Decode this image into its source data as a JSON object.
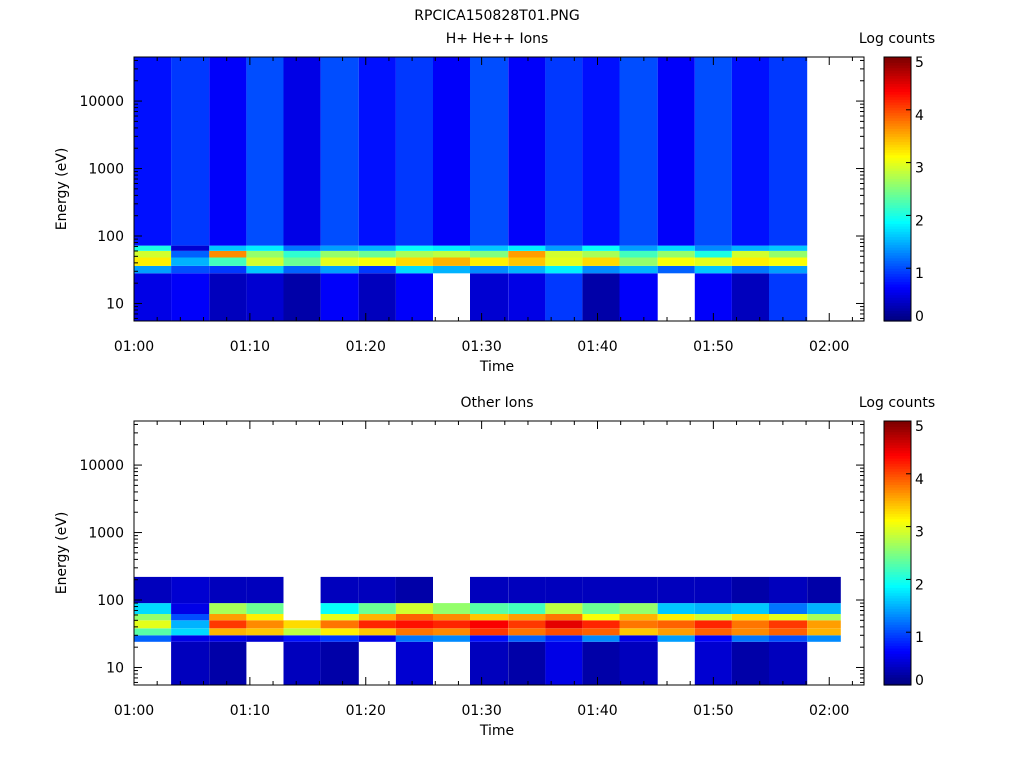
{
  "figure_title": "RPCICA150828T01.PNG",
  "chart_data": [
    {
      "type": "heatmap",
      "title": "H+ He++ Ions",
      "xlabel": "Time",
      "ylabel": "Energy (eV)",
      "colorbar_label": "Log counts",
      "x_ticks": [
        "01:00",
        "01:10",
        "01:20",
        "01:30",
        "01:40",
        "01:50",
        "02:00"
      ],
      "x_range_minutes": [
        0,
        63
      ],
      "y_scale": "log",
      "y_range": [
        5.5,
        45000
      ],
      "y_ticks": [
        "10",
        "100",
        "1000",
        "10000"
      ],
      "y_tick_values": [
        10,
        100,
        1000,
        10000
      ],
      "colorbar_range": [
        0,
        5
      ],
      "colorbar_ticks": [
        "0",
        "1",
        "2",
        "3",
        "4",
        "5"
      ],
      "time_bins_minutes": [
        0,
        3.2,
        6.5,
        9.7,
        12.9,
        16.1,
        19.4,
        22.6,
        25.8,
        29.0,
        32.3,
        35.5,
        38.7,
        41.9,
        45.2,
        48.4,
        51.6,
        54.8,
        58.1,
        61.0
      ],
      "energy_bands": [
        {
          "from": 5.5,
          "to": 28,
          "log_counts_by_bin": [
            0.5,
            0.6,
            0.3,
            0.4,
            0.2,
            0.6,
            0.3,
            0.6,
            null,
            0.4,
            0.5,
            0.9,
            0.2,
            0.6,
            null,
            0.6,
            0.3,
            0.9,
            null
          ]
        },
        {
          "from": 28,
          "to": 36,
          "log_counts_by_bin": [
            1.4,
            1.0,
            0.9,
            1.6,
            1.1,
            1.4,
            0.9,
            1.7,
            1.5,
            1.3,
            1.5,
            1.8,
            1.3,
            1.5,
            1.1,
            1.6,
            1.2,
            1.4,
            null
          ]
        },
        {
          "from": 36,
          "to": 48,
          "log_counts_by_bin": [
            3.2,
            1.5,
            2.2,
            2.9,
            2.4,
            3.0,
            3.1,
            3.3,
            3.5,
            3.2,
            3.4,
            3.0,
            3.3,
            2.6,
            3.1,
            3.0,
            3.2,
            3.1,
            null
          ]
        },
        {
          "from": 48,
          "to": 60,
          "log_counts_by_bin": [
            2.9,
            1.1,
            3.7,
            2.6,
            2.1,
            2.6,
            2.4,
            2.7,
            2.8,
            2.5,
            3.6,
            2.9,
            2.7,
            2.2,
            2.6,
            2.0,
            2.9,
            2.6,
            null
          ]
        },
        {
          "from": 60,
          "to": 72,
          "log_counts_by_bin": [
            2.0,
            0.4,
            1.6,
            1.8,
            1.2,
            1.4,
            1.5,
            1.9,
            1.8,
            1.6,
            1.8,
            1.4,
            1.9,
            1.4,
            1.7,
            1.3,
            1.5,
            1.6,
            null
          ]
        },
        {
          "from": 72,
          "to": 45000,
          "log_counts_by_bin": [
            0.7,
            0.9,
            0.6,
            1.0,
            0.5,
            1.0,
            0.7,
            0.9,
            0.6,
            1.0,
            0.6,
            0.9,
            0.7,
            1.0,
            0.6,
            1.0,
            0.7,
            0.9,
            null
          ]
        }
      ]
    },
    {
      "type": "heatmap",
      "title": "Other Ions",
      "xlabel": "Time",
      "ylabel": "Energy (eV)",
      "colorbar_label": "Log counts",
      "x_ticks": [
        "01:00",
        "01:10",
        "01:20",
        "01:30",
        "01:40",
        "01:50",
        "02:00"
      ],
      "x_range_minutes": [
        0,
        63
      ],
      "y_scale": "log",
      "y_range": [
        5.5,
        45000
      ],
      "y_ticks": [
        "10",
        "100",
        "1000",
        "10000"
      ],
      "y_tick_values": [
        10,
        100,
        1000,
        10000
      ],
      "colorbar_range": [
        0,
        5
      ],
      "colorbar_ticks": [
        "0",
        "1",
        "2",
        "3",
        "4",
        "5"
      ],
      "time_bins_minutes": [
        0,
        3.2,
        6.5,
        9.7,
        12.9,
        16.1,
        19.4,
        22.6,
        25.8,
        29.0,
        32.3,
        35.5,
        38.7,
        41.9,
        45.2,
        48.4,
        51.6,
        54.8,
        58.1,
        61.0
      ],
      "energy_bands": [
        {
          "from": 5.5,
          "to": 24,
          "log_counts_by_bin": [
            null,
            0.3,
            0.2,
            null,
            0.3,
            0.2,
            null,
            0.4,
            null,
            0.3,
            0.2,
            0.5,
            0.2,
            0.3,
            null,
            0.4,
            0.2,
            0.3,
            null
          ]
        },
        {
          "from": 24,
          "to": 30,
          "log_counts_by_bin": [
            1.1,
            0.5,
            0.5,
            0.4,
            0.7,
            0.9,
            0.5,
            1.2,
            1.3,
            0.7,
            1.1,
            0.8,
            1.3,
            0.5,
            1.4,
            0.6,
            1.2,
            1.0,
            1.3
          ]
        },
        {
          "from": 30,
          "to": 38,
          "log_counts_by_bin": [
            2.3,
            1.7,
            3.5,
            3.4,
            2.8,
            3.2,
            3.4,
            3.8,
            3.7,
            4.1,
            3.8,
            4.0,
            3.9,
            3.4,
            3.6,
            3.9,
            3.7,
            3.9,
            3.5
          ]
        },
        {
          "from": 38,
          "to": 50,
          "log_counts_by_bin": [
            3.0,
            1.5,
            4.1,
            3.7,
            3.3,
            3.8,
            4.2,
            4.3,
            4.2,
            4.4,
            4.1,
            4.5,
            4.2,
            3.8,
            3.9,
            4.2,
            3.8,
            4.1,
            3.6
          ]
        },
        {
          "from": 50,
          "to": 62,
          "log_counts_by_bin": [
            2.6,
            1.0,
            3.6,
            3.2,
            null,
            3.0,
            3.5,
            3.9,
            3.7,
            3.4,
            3.6,
            3.8,
            3.1,
            3.5,
            3.2,
            2.9,
            3.3,
            3.0,
            2.7
          ]
        },
        {
          "from": 62,
          "to": 90,
          "log_counts_by_bin": [
            1.7,
            0.5,
            2.7,
            2.4,
            null,
            1.9,
            2.4,
            2.9,
            2.6,
            2.3,
            2.2,
            2.8,
            2.4,
            2.6,
            1.6,
            1.5,
            1.6,
            1.2,
            1.5
          ]
        },
        {
          "from": 90,
          "to": 220,
          "log_counts_by_bin": [
            0.3,
            0.4,
            0.3,
            0.3,
            null,
            0.3,
            0.3,
            0.2,
            null,
            0.3,
            0.3,
            0.3,
            0.3,
            0.3,
            0.3,
            0.3,
            0.2,
            0.3,
            0.2
          ]
        }
      ]
    }
  ]
}
